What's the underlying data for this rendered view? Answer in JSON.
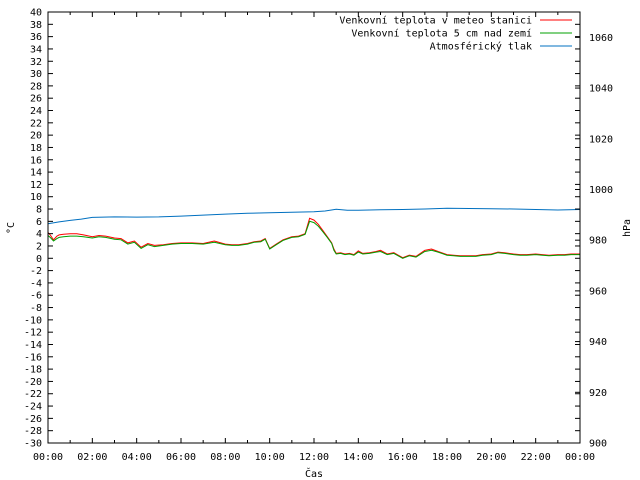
{
  "chart_data": {
    "type": "line",
    "xlabel": "Čas",
    "ylabel": "°C",
    "y2label": "hPa",
    "x_ticks": [
      "00:00",
      "02:00",
      "04:00",
      "06:00",
      "08:00",
      "10:00",
      "12:00",
      "14:00",
      "16:00",
      "18:00",
      "20:00",
      "22:00",
      "00:00"
    ],
    "x_range_hours": [
      0,
      24
    ],
    "ylim": [
      -30,
      40
    ],
    "y_ticks": [
      40,
      38,
      36,
      34,
      32,
      30,
      28,
      26,
      24,
      22,
      20,
      18,
      16,
      14,
      12,
      10,
      8,
      6,
      4,
      2,
      0,
      -2,
      -4,
      -6,
      -8,
      -10,
      -12,
      -14,
      -16,
      -18,
      -20,
      -22,
      -24,
      -26,
      -28,
      -30
    ],
    "y2lim": [
      900,
      1070
    ],
    "y2_ticks": [
      1060,
      1040,
      1020,
      1000,
      980,
      960,
      940,
      920,
      900
    ],
    "grid": false,
    "legend_position": "top-right",
    "series": [
      {
        "name": "Venkovní teplota v meteo stanici",
        "color": "#ff0000",
        "axis": "y",
        "x": [
          0,
          0.1,
          0.25,
          0.4,
          0.5,
          0.7,
          1,
          1.3,
          1.6,
          2,
          2.3,
          2.6,
          3,
          3.3,
          3.6,
          3.9,
          4.2,
          4.5,
          4.8,
          5.2,
          5.6,
          6,
          6.5,
          7,
          7.5,
          8,
          8.3,
          8.6,
          9,
          9.3,
          9.6,
          9.8,
          10,
          10.3,
          10.6,
          11,
          11.3,
          11.6,
          11.8,
          12,
          12.2,
          12.4,
          12.6,
          12.8,
          12.9,
          13,
          13.2,
          13.4,
          13.6,
          13.8,
          14,
          14.2,
          14.5,
          14.8,
          15,
          15.3,
          15.6,
          16,
          16.3,
          16.6,
          17,
          17.3,
          17.6,
          18,
          18.3,
          18.6,
          19,
          19.3,
          19.6,
          20,
          20.3,
          20.6,
          21,
          21.3,
          21.6,
          22,
          22.3,
          22.6,
          23,
          23.3,
          23.6,
          24
        ],
        "values": [
          4.2,
          3.8,
          3.0,
          3.6,
          3.8,
          3.9,
          4.0,
          4.0,
          3.8,
          3.5,
          3.7,
          3.6,
          3.3,
          3.2,
          2.5,
          2.8,
          1.8,
          2.4,
          2.1,
          2.2,
          2.4,
          2.5,
          2.5,
          2.4,
          2.8,
          2.3,
          2.2,
          2.2,
          2.4,
          2.7,
          2.8,
          3.2,
          1.6,
          2.3,
          3.0,
          3.5,
          3.6,
          4.0,
          6.5,
          6.2,
          5.5,
          4.5,
          3.5,
          2.5,
          1.5,
          0.8,
          0.9,
          0.7,
          0.8,
          0.6,
          1.2,
          0.8,
          0.9,
          1.1,
          1.3,
          0.7,
          0.9,
          0.1,
          0.5,
          0.3,
          1.3,
          1.5,
          1.1,
          0.6,
          0.5,
          0.4,
          0.4,
          0.4,
          0.6,
          0.7,
          1.0,
          0.9,
          0.7,
          0.6,
          0.6,
          0.7,
          0.6,
          0.5,
          0.6,
          0.6,
          0.7,
          0.7
        ]
      },
      {
        "name": "Venkovní teplota 5 cm nad zemí",
        "color": "#00a000",
        "axis": "y",
        "x": [
          0,
          0.1,
          0.25,
          0.4,
          0.5,
          0.7,
          1,
          1.3,
          1.6,
          2,
          2.3,
          2.6,
          3,
          3.3,
          3.6,
          3.9,
          4.2,
          4.5,
          4.8,
          5.2,
          5.6,
          6,
          6.5,
          7,
          7.5,
          8,
          8.3,
          8.6,
          9,
          9.3,
          9.6,
          9.8,
          10,
          10.3,
          10.6,
          11,
          11.3,
          11.6,
          11.8,
          12,
          12.2,
          12.4,
          12.6,
          12.8,
          12.9,
          13,
          13.2,
          13.4,
          13.6,
          13.8,
          14,
          14.2,
          14.5,
          14.8,
          15,
          15.3,
          15.6,
          16,
          16.3,
          16.6,
          17,
          17.3,
          17.6,
          18,
          18.3,
          18.6,
          19,
          19.3,
          19.6,
          20,
          20.3,
          20.6,
          21,
          21.3,
          21.6,
          22,
          22.3,
          22.6,
          23,
          23.3,
          23.6,
          24
        ],
        "values": [
          3.7,
          3.4,
          2.8,
          3.2,
          3.4,
          3.5,
          3.6,
          3.6,
          3.5,
          3.3,
          3.5,
          3.4,
          3.1,
          3.0,
          2.3,
          2.6,
          1.6,
          2.2,
          1.9,
          2.1,
          2.3,
          2.4,
          2.4,
          2.3,
          2.6,
          2.2,
          2.1,
          2.1,
          2.3,
          2.6,
          2.7,
          3.1,
          1.5,
          2.2,
          2.9,
          3.4,
          3.5,
          3.9,
          6.0,
          5.8,
          5.2,
          4.3,
          3.4,
          2.4,
          1.3,
          0.7,
          0.8,
          0.6,
          0.7,
          0.5,
          1.0,
          0.7,
          0.8,
          1.0,
          1.1,
          0.6,
          0.8,
          0.0,
          0.4,
          0.2,
          1.1,
          1.3,
          1.0,
          0.5,
          0.4,
          0.3,
          0.3,
          0.3,
          0.5,
          0.6,
          0.9,
          0.8,
          0.6,
          0.5,
          0.5,
          0.6,
          0.5,
          0.4,
          0.5,
          0.5,
          0.6,
          0.6
        ]
      },
      {
        "name": "Atmosférický tlak",
        "color": "#0070c0",
        "axis": "y2",
        "x": [
          0,
          0.5,
          1,
          1.5,
          2,
          3,
          4,
          5,
          6,
          7,
          8,
          9,
          10,
          11,
          11.5,
          12,
          12.5,
          13,
          13.5,
          14,
          15,
          16,
          17,
          18,
          19,
          20,
          21,
          22,
          23,
          24
        ],
        "values": [
          986.5,
          987.2,
          987.8,
          988.3,
          989.0,
          989.2,
          989.1,
          989.2,
          989.5,
          989.9,
          990.3,
          990.6,
          990.8,
          991.0,
          991.1,
          991.2,
          991.5,
          992.2,
          991.8,
          991.8,
          992.0,
          992.1,
          992.3,
          992.6,
          992.5,
          992.4,
          992.3,
          992.1,
          991.9,
          992.1
        ]
      }
    ]
  }
}
